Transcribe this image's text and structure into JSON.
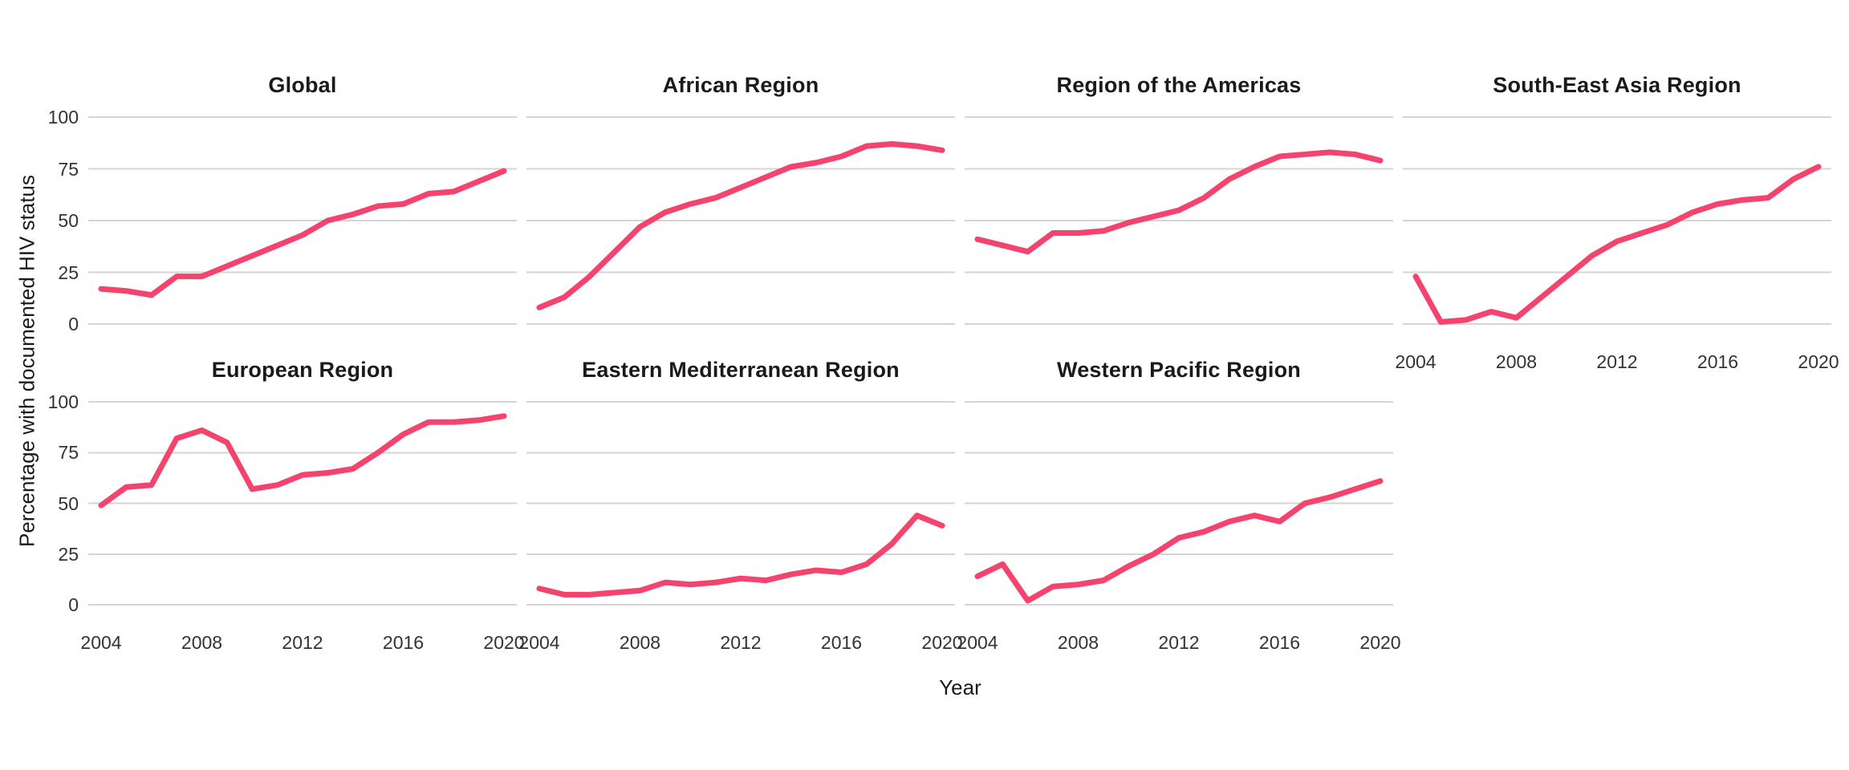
{
  "figure": {
    "ylab": "Percentage with documented HIV status",
    "xlab": "Year",
    "background": "#FFFFFF",
    "text_color": "#333333",
    "title_color": "#1A1A1A"
  },
  "chart_data": {
    "type": "line",
    "title": "",
    "x": [
      2004,
      2005,
      2006,
      2007,
      2008,
      2009,
      2010,
      2011,
      2012,
      2013,
      2014,
      2015,
      2016,
      2017,
      2018,
      2019,
      2020
    ],
    "x_ticks": [
      2004,
      2008,
      2012,
      2016,
      2020
    ],
    "x_tick_labels": [
      "2004",
      "2008",
      "2012",
      "2016",
      "2020"
    ],
    "y_ticks": [
      100,
      75,
      50,
      25,
      0
    ],
    "ylim": [
      0,
      100
    ],
    "xlabel": "Year",
    "ylabel": "Percentage with documented HIV status",
    "grid": "horizontal-major-only",
    "legend": "none",
    "line_color": "#F4436C",
    "grid_color": "#D5D5D5",
    "facet_layout": {
      "rows": 2,
      "cols": 4,
      "empty_cells": [
        "row2-col4"
      ]
    },
    "facets": [
      {
        "title": "Global",
        "show_x_axis": false,
        "values": [
          17,
          16,
          14,
          23,
          23,
          28,
          33,
          38,
          43,
          50,
          53,
          57,
          58,
          63,
          64,
          69,
          74
        ]
      },
      {
        "title": "African Region",
        "show_x_axis": false,
        "values": [
          8,
          13,
          23,
          35,
          47,
          54,
          58,
          61,
          66,
          71,
          76,
          78,
          81,
          86,
          87,
          86,
          84
        ]
      },
      {
        "title": "Region of the Americas",
        "show_x_axis": false,
        "values": [
          41,
          38,
          35,
          44,
          44,
          45,
          49,
          52,
          55,
          61,
          70,
          76,
          81,
          82,
          83,
          82,
          79
        ]
      },
      {
        "title": "South-East Asia Region",
        "show_x_axis": true,
        "values": [
          23,
          1,
          2,
          6,
          3,
          13,
          23,
          33,
          40,
          44,
          48,
          54,
          58,
          60,
          61,
          70,
          76
        ]
      },
      {
        "title": "European Region",
        "show_x_axis": true,
        "values": [
          49,
          58,
          59,
          82,
          86,
          80,
          57,
          59,
          64,
          65,
          67,
          75,
          84,
          90,
          90,
          91,
          93
        ]
      },
      {
        "title": "Eastern Mediterranean Region",
        "show_x_axis": true,
        "values": [
          8,
          5,
          5,
          6,
          7,
          11,
          10,
          11,
          13,
          12,
          15,
          17,
          16,
          20,
          30,
          44,
          39
        ]
      },
      {
        "title": "Western Pacific Region",
        "show_x_axis": true,
        "values": [
          14,
          20,
          2,
          9,
          10,
          12,
          19,
          25,
          33,
          36,
          41,
          44,
          41,
          50,
          53,
          57,
          61
        ]
      }
    ]
  }
}
